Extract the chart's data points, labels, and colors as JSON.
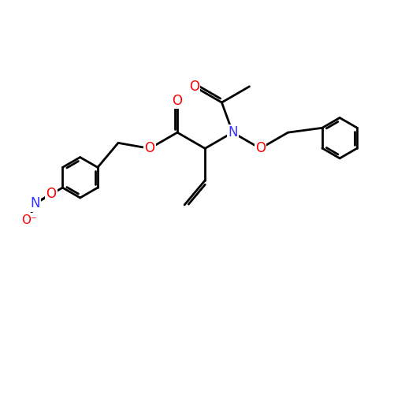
{
  "bg_color": "#ffffff",
  "bond_color": "#000000",
  "bond_width": 2.0,
  "atom_colors": {
    "O": "#ff0000",
    "N": "#3333ff",
    "C": "#000000"
  },
  "font_size": 12,
  "figsize": [
    5.0,
    5.0
  ],
  "dpi": 100
}
